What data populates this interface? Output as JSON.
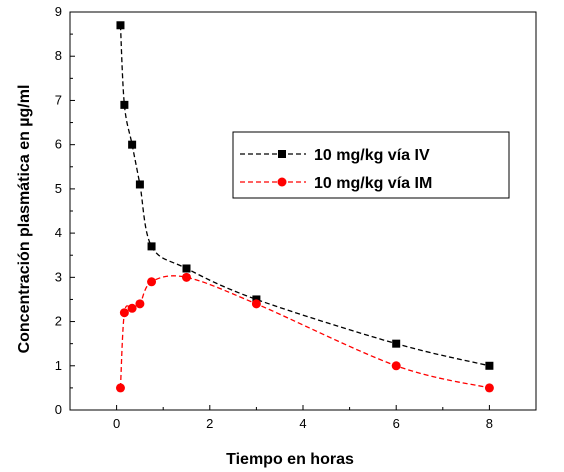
{
  "chart_data": {
    "type": "line",
    "title": "",
    "xlabel": "Tiempo en horas",
    "ylabel": "Concentración plasmática en µg/ml",
    "xlim": [
      -1,
      9
    ],
    "ylim": [
      0,
      9
    ],
    "x_ticks": [
      0,
      2,
      4,
      6,
      8
    ],
    "y_ticks": [
      0,
      1,
      2,
      3,
      4,
      5,
      6,
      7,
      8,
      9
    ],
    "grid": false,
    "legend_position": "center-right",
    "series": [
      {
        "name": "10 mg/kg vía IV",
        "color": "#000000",
        "marker": "square",
        "line_style": "dashed",
        "x": [
          0.083,
          0.167,
          0.333,
          0.5,
          0.75,
          1.5,
          3,
          6,
          8
        ],
        "y": [
          8.7,
          6.9,
          6.0,
          5.1,
          3.7,
          3.2,
          2.5,
          1.5,
          1.0
        ]
      },
      {
        "name": "10 mg/kg vía IM",
        "color": "#ff0000",
        "marker": "circle",
        "line_style": "dashed",
        "x": [
          0.083,
          0.167,
          0.333,
          0.5,
          0.75,
          1.5,
          3,
          6,
          8
        ],
        "y": [
          0.5,
          2.2,
          2.3,
          2.4,
          2.9,
          3.0,
          2.4,
          1.0,
          0.5
        ]
      }
    ]
  }
}
